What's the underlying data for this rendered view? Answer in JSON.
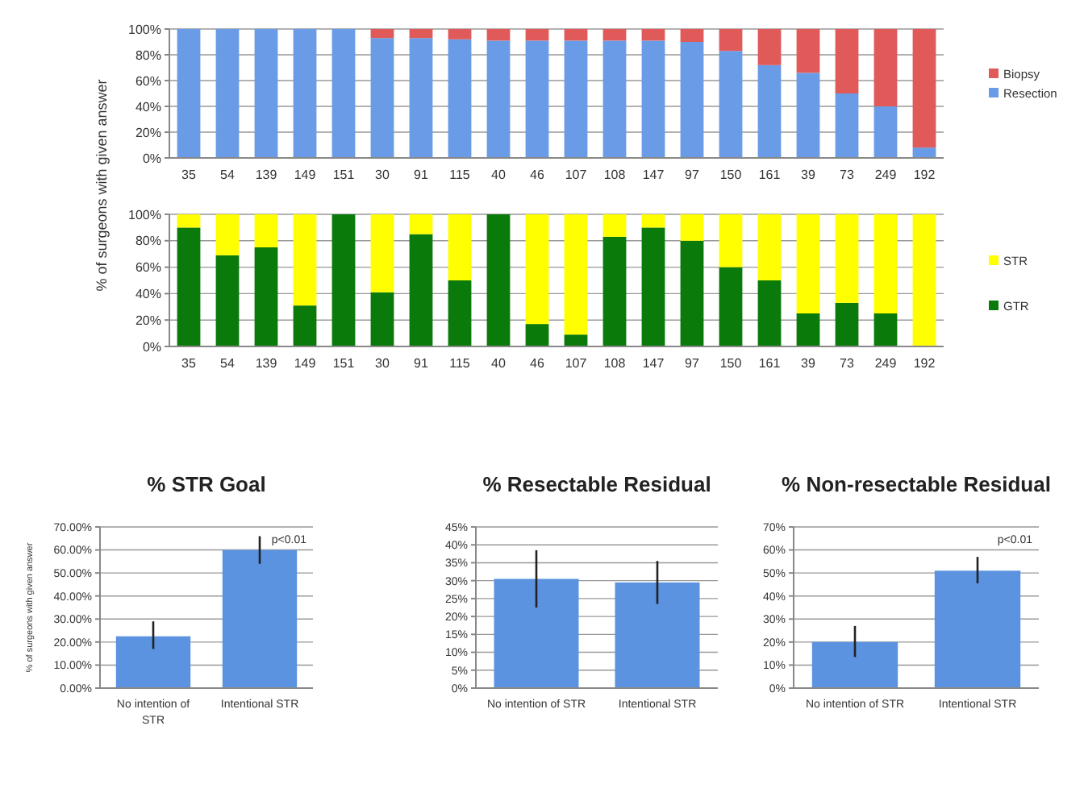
{
  "chart_data": [
    {
      "type": "bar",
      "stacked": true,
      "ylabel": "% of surgeons with given answer",
      "categories": [
        "35",
        "54",
        "139",
        "149",
        "151",
        "30",
        "91",
        "115",
        "40",
        "46",
        "107",
        "108",
        "147",
        "97",
        "150",
        "161",
        "39",
        "73",
        "249",
        "192"
      ],
      "series": [
        {
          "name": "Resection",
          "color": "#6a9be6",
          "values": [
            100,
            100,
            100,
            100,
            100,
            93,
            93,
            92,
            91,
            91,
            91,
            91,
            91,
            90,
            83,
            72,
            66,
            50,
            40,
            8
          ]
        },
        {
          "name": "Biopsy",
          "color": "#e05a5a",
          "values": [
            0,
            0,
            0,
            0,
            0,
            7,
            7,
            8,
            9,
            9,
            9,
            9,
            9,
            10,
            17,
            28,
            34,
            50,
            60,
            92
          ]
        }
      ],
      "ylim": [
        0,
        100
      ],
      "yticks": [
        {
          "value": 0,
          "label": "0%"
        },
        {
          "value": 20,
          "label": "20%"
        },
        {
          "value": 40,
          "label": "40%"
        },
        {
          "value": 60,
          "label": "60%"
        },
        {
          "value": 80,
          "label": "80%"
        },
        {
          "value": 100,
          "label": "100%"
        }
      ],
      "grid": "y",
      "legend": "right"
    },
    {
      "type": "bar",
      "stacked": true,
      "categories": [
        "35",
        "54",
        "139",
        "149",
        "151",
        "30",
        "91",
        "115",
        "40",
        "46",
        "107",
        "108",
        "147",
        "97",
        "150",
        "161",
        "39",
        "73",
        "249",
        "192"
      ],
      "series": [
        {
          "name": "GTR",
          "color": "#0a7a0a",
          "values": [
            90,
            69,
            75,
            31,
            100,
            41,
            85,
            50,
            100,
            17,
            9,
            83,
            90,
            80,
            60,
            50,
            25,
            33,
            25,
            0
          ]
        },
        {
          "name": "STR",
          "color": "#ffff00",
          "values": [
            10,
            31,
            25,
            69,
            0,
            59,
            15,
            50,
            0,
            83,
            91,
            17,
            10,
            20,
            40,
            50,
            75,
            67,
            75,
            100
          ]
        }
      ],
      "ylim": [
        0,
        100
      ],
      "yticks": [
        {
          "value": 0,
          "label": "0%"
        },
        {
          "value": 20,
          "label": "20%"
        },
        {
          "value": 40,
          "label": "40%"
        },
        {
          "value": 60,
          "label": "60%"
        },
        {
          "value": 80,
          "label": "80%"
        },
        {
          "value": 100,
          "label": "100%"
        }
      ],
      "grid": "y",
      "legend": "right"
    },
    {
      "type": "bar",
      "title": "% STR Goal",
      "ylabel": "% of surgeons with given answer",
      "categories": [
        "No intention of STR",
        "Intentional STR"
      ],
      "values": [
        22.5,
        60
      ],
      "errors": [
        [
          17,
          29
        ],
        [
          54,
          66
        ]
      ],
      "color": "#5b93e0",
      "ylim": [
        0,
        70
      ],
      "yticks": [
        {
          "value": 0,
          "label": "0.00%"
        },
        {
          "value": 10,
          "label": "10.00%"
        },
        {
          "value": 20,
          "label": "20.00%"
        },
        {
          "value": 30,
          "label": "30.00%"
        },
        {
          "value": 40,
          "label": "40.00%"
        },
        {
          "value": 50,
          "label": "50.00%"
        },
        {
          "value": 60,
          "label": "60.00%"
        },
        {
          "value": 70,
          "label": "70.00%"
        }
      ],
      "grid": "y",
      "annotations": [
        "p<0.01"
      ]
    },
    {
      "type": "bar",
      "title": "% Resectable Residual",
      "categories": [
        "No intention of STR",
        "Intentional STR"
      ],
      "values": [
        30.5,
        29.5
      ],
      "errors": [
        [
          22.5,
          38.5
        ],
        [
          23.5,
          35.5
        ]
      ],
      "color": "#5b93e0",
      "ylim": [
        0,
        45
      ],
      "yticks": [
        {
          "value": 0,
          "label": "0%"
        },
        {
          "value": 5,
          "label": "5%"
        },
        {
          "value": 10,
          "label": "10%"
        },
        {
          "value": 15,
          "label": "15%"
        },
        {
          "value": 20,
          "label": "20%"
        },
        {
          "value": 25,
          "label": "25%"
        },
        {
          "value": 30,
          "label": "30%"
        },
        {
          "value": 35,
          "label": "35%"
        },
        {
          "value": 40,
          "label": "40%"
        },
        {
          "value": 45,
          "label": "45%"
        }
      ],
      "grid": "y"
    },
    {
      "type": "bar",
      "title": "% Non-resectable Residual",
      "categories": [
        "No intention of STR",
        "Intentional STR"
      ],
      "values": [
        20,
        51
      ],
      "errors": [
        [
          13.5,
          27
        ],
        [
          45.5,
          57
        ]
      ],
      "color": "#5b93e0",
      "ylim": [
        0,
        70
      ],
      "yticks": [
        {
          "value": 0,
          "label": "0%"
        },
        {
          "value": 10,
          "label": "10%"
        },
        {
          "value": 20,
          "label": "20%"
        },
        {
          "value": 30,
          "label": "30%"
        },
        {
          "value": 40,
          "label": "40%"
        },
        {
          "value": 50,
          "label": "50%"
        },
        {
          "value": 60,
          "label": "60%"
        },
        {
          "value": 70,
          "label": "70%"
        }
      ],
      "grid": "y",
      "annotations": [
        "p<0.01"
      ]
    }
  ]
}
